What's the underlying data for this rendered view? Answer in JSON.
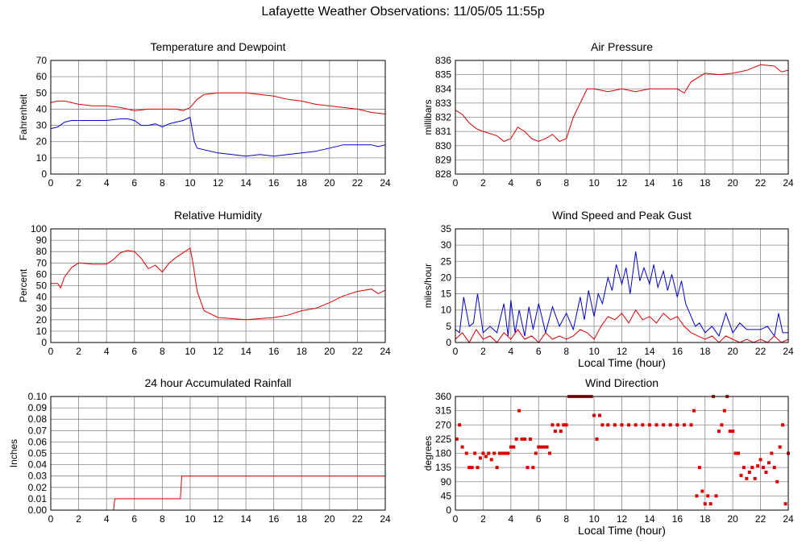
{
  "page": {
    "title": "Lafayette Weather Observations: 11/05/05 11:55p"
  },
  "colors": {
    "grid": "#888888",
    "red": "#dd0000",
    "blue": "#0000cc"
  },
  "chart_data": [
    {
      "id": "temp",
      "type": "line",
      "title": "Temperature and Dewpoint",
      "ylabel": "Fahrenheit",
      "xlabel": "",
      "xlim": [
        0,
        24
      ],
      "ylim": [
        0,
        70
      ],
      "xticks": [
        0,
        2,
        4,
        6,
        8,
        10,
        12,
        14,
        16,
        18,
        20,
        22,
        24
      ],
      "yticks": [
        0,
        10,
        20,
        30,
        40,
        50,
        60,
        70
      ],
      "grid": true,
      "series": [
        {
          "color": "red",
          "x": [
            0,
            0.5,
            1,
            1.5,
            2,
            3,
            4,
            5,
            6,
            7,
            8,
            9,
            9.5,
            10,
            10.5,
            11,
            12,
            13,
            14,
            15,
            16,
            17,
            18,
            19,
            20,
            21,
            22,
            23,
            24
          ],
          "values": [
            44,
            45,
            45,
            44,
            43,
            42,
            42,
            41,
            39,
            40,
            40,
            40,
            39,
            41,
            46,
            49,
            50,
            50,
            50,
            49,
            48,
            46,
            45,
            43,
            42,
            41,
            40,
            38,
            37
          ]
        },
        {
          "color": "blue",
          "x": [
            0,
            0.5,
            1,
            1.5,
            2,
            3,
            4,
            5,
            5.5,
            6,
            6.5,
            7,
            7.5,
            8,
            8.5,
            9,
            9.5,
            10,
            10.1,
            10.3,
            10.5,
            11,
            12,
            13,
            14,
            15,
            16,
            17,
            18,
            19,
            20,
            21,
            22,
            23,
            23.5,
            24
          ],
          "values": [
            28,
            29,
            32,
            33,
            33,
            33,
            33,
            34,
            34,
            33,
            30,
            30,
            31,
            29,
            31,
            32,
            33,
            35,
            30,
            20,
            16,
            15,
            13,
            12,
            11,
            12,
            11,
            12,
            13,
            14,
            16,
            18,
            18,
            18,
            17,
            18
          ]
        }
      ]
    },
    {
      "id": "pressure",
      "type": "line",
      "title": "Air Pressure",
      "ylabel": "millibars",
      "xlabel": "",
      "xlim": [
        0,
        24
      ],
      "ylim": [
        828,
        836
      ],
      "xticks": [
        0,
        2,
        4,
        6,
        8,
        10,
        12,
        14,
        16,
        18,
        20,
        22,
        24
      ],
      "yticks": [
        828,
        829,
        830,
        831,
        832,
        833,
        834,
        835,
        836
      ],
      "grid": true,
      "series": [
        {
          "color": "red",
          "x": [
            0,
            0.5,
            1,
            1.5,
            2,
            3,
            3.5,
            4,
            4.5,
            5,
            5.5,
            6,
            6.5,
            7,
            7.5,
            8,
            8.5,
            9,
            9.5,
            10,
            11,
            12,
            13,
            14,
            15,
            16,
            16.5,
            17,
            18,
            19,
            20,
            21,
            22,
            23,
            23.5,
            24
          ],
          "values": [
            832.5,
            832.2,
            831.6,
            831.2,
            831,
            830.7,
            830.3,
            830.5,
            831.3,
            831,
            830.5,
            830.3,
            830.5,
            830.8,
            830.3,
            830.5,
            832,
            833,
            834,
            834,
            833.8,
            834,
            833.8,
            834,
            834,
            834,
            833.7,
            834.5,
            835.1,
            835,
            835.1,
            835.3,
            835.7,
            835.6,
            835.2,
            835.3
          ]
        }
      ]
    },
    {
      "id": "humidity",
      "type": "line",
      "title": "Relative Humidity",
      "ylabel": "Percent",
      "xlabel": "",
      "xlim": [
        0,
        24
      ],
      "ylim": [
        0,
        100
      ],
      "xticks": [
        0,
        2,
        4,
        6,
        8,
        10,
        12,
        14,
        16,
        18,
        20,
        22,
        24
      ],
      "yticks": [
        0,
        10,
        20,
        30,
        40,
        50,
        60,
        70,
        80,
        90,
        100
      ],
      "grid": true,
      "series": [
        {
          "color": "red",
          "x": [
            0,
            0.5,
            0.7,
            1,
            1.5,
            2,
            3,
            4,
            4.5,
            5,
            5.5,
            6,
            6.5,
            7,
            7.5,
            8,
            8.5,
            9,
            9.5,
            10,
            10.2,
            10.5,
            11,
            12,
            13,
            14,
            15,
            16,
            17,
            18,
            19,
            20,
            21,
            22,
            23,
            23.5,
            24
          ],
          "values": [
            52,
            52,
            48,
            58,
            66,
            70,
            69,
            69,
            73,
            79,
            81,
            80,
            74,
            65,
            68,
            62,
            70,
            75,
            79,
            83,
            70,
            45,
            28,
            22,
            21,
            20,
            21,
            22,
            24,
            28,
            30,
            35,
            41,
            45,
            47,
            43,
            46
          ]
        }
      ]
    },
    {
      "id": "wind",
      "type": "line",
      "title": "Wind Speed and Peak Gust",
      "ylabel": "miles/hour",
      "xlabel": "Local Time (hour)",
      "xlim": [
        0,
        24
      ],
      "ylim": [
        0,
        35
      ],
      "xticks": [
        0,
        2,
        4,
        6,
        8,
        10,
        12,
        14,
        16,
        18,
        20,
        22,
        24
      ],
      "yticks": [
        0,
        5,
        10,
        15,
        20,
        25,
        30,
        35
      ],
      "grid": true,
      "series": [
        {
          "color": "blue",
          "x": [
            0,
            0.3,
            0.6,
            1,
            1.3,
            1.6,
            2,
            2.5,
            3,
            3.5,
            3.8,
            4,
            4.3,
            4.6,
            5,
            5.3,
            5.6,
            6,
            6.5,
            7,
            7.5,
            8,
            8.5,
            9,
            9.3,
            9.6,
            10,
            10.3,
            10.6,
            11,
            11.3,
            11.6,
            12,
            12.3,
            12.6,
            13,
            13.3,
            13.6,
            14,
            14.3,
            14.6,
            15,
            15.3,
            15.6,
            16,
            16.3,
            16.6,
            17,
            17.3,
            17.6,
            18,
            18.5,
            19,
            19.5,
            20,
            20.5,
            21,
            21.5,
            22,
            22.5,
            23,
            23.3,
            23.6,
            24
          ],
          "values": [
            4,
            3,
            14,
            5,
            6,
            15,
            3,
            5,
            3,
            12,
            2,
            13,
            3,
            10,
            2,
            11,
            4,
            12,
            3,
            11,
            5,
            9,
            4,
            14,
            7,
            16,
            8,
            15,
            12,
            20,
            16,
            24,
            18,
            23,
            15,
            28,
            19,
            23,
            18,
            24,
            17,
            22,
            16,
            21,
            14,
            19,
            12,
            8,
            5,
            6,
            3,
            5,
            2,
            9,
            3,
            6,
            4,
            4,
            4,
            5,
            2,
            9,
            3,
            3
          ]
        },
        {
          "color": "red",
          "x": [
            0,
            0.5,
            1,
            1.5,
            2,
            2.5,
            3,
            3.5,
            4,
            4.5,
            5,
            5.5,
            6,
            6.5,
            7,
            7.5,
            8,
            8.5,
            9,
            9.5,
            10,
            10.5,
            11,
            11.5,
            12,
            12.5,
            13,
            13.5,
            14,
            14.5,
            15,
            15.5,
            16,
            16.5,
            17,
            17.5,
            18,
            18.5,
            19,
            19.5,
            20,
            20.5,
            21,
            21.5,
            22,
            22.5,
            23,
            23.5,
            24
          ],
          "values": [
            1,
            3,
            0,
            4,
            1,
            2,
            0,
            3,
            1,
            4,
            1,
            2,
            0,
            3,
            1,
            2,
            1,
            2,
            4,
            3,
            1,
            5,
            8,
            7,
            9,
            6,
            10,
            7,
            8,
            6,
            9,
            7,
            8,
            5,
            3,
            2,
            1,
            2,
            0,
            2,
            1,
            0,
            1,
            0,
            1,
            0,
            2,
            0,
            1
          ]
        }
      ]
    },
    {
      "id": "rain",
      "type": "line",
      "title": "24 hour Accumulated Rainfall",
      "ylabel": "Inches",
      "xlabel": "",
      "xlim": [
        0,
        24
      ],
      "ylim": [
        0,
        0.1
      ],
      "xticks": [
        0,
        2,
        4,
        6,
        8,
        10,
        12,
        14,
        16,
        18,
        20,
        22,
        24
      ],
      "yticks": [
        "0.00",
        "0.01",
        "0.02",
        "0.03",
        "0.04",
        "0.05",
        "0.06",
        "0.07",
        "0.08",
        "0.09",
        "0.10"
      ],
      "grid": true,
      "series": [
        {
          "color": "red",
          "x": [
            0,
            4.5,
            4.6,
            9.3,
            9.4,
            24
          ],
          "values": [
            0,
            0,
            0.01,
            0.01,
            0.03,
            0.03
          ]
        }
      ]
    },
    {
      "id": "direction",
      "type": "scatter",
      "title": "Wind Direction",
      "ylabel": "degrees",
      "xlabel": "Local Time (hour)",
      "xlim": [
        0,
        24
      ],
      "ylim": [
        0,
        360
      ],
      "xticks": [
        0,
        2,
        4,
        6,
        8,
        10,
        12,
        14,
        16,
        18,
        20,
        22,
        24
      ],
      "yticks": [
        0,
        45,
        90,
        135,
        180,
        225,
        270,
        315,
        360
      ],
      "grid": true,
      "series": [
        {
          "color": "red",
          "x": [
            0.1,
            0.3,
            0.5,
            0.8,
            1,
            1.2,
            1.4,
            1.6,
            1.8,
            2,
            2.2,
            2.4,
            2.6,
            2.8,
            3,
            3.2,
            3.4,
            3.6,
            3.8,
            4,
            4.2,
            4.4,
            4.6,
            4.8,
            5,
            5.2,
            5.4,
            5.6,
            5.8,
            6,
            6.2,
            6.4,
            6.6,
            6.8,
            7,
            7.2,
            7.4,
            7.6,
            7.8,
            8,
            8.2,
            8.4,
            8.6,
            8.8,
            9,
            9.2,
            9.4,
            9.6,
            9.8,
            10,
            10.2,
            10.4,
            10.6,
            11,
            11.5,
            12,
            12.5,
            13,
            13.5,
            14,
            14.5,
            15,
            15.5,
            16,
            16.5,
            17,
            17.2,
            17.4,
            17.6,
            17.8,
            18,
            18.2,
            18.4,
            18.6,
            18.8,
            19,
            19.2,
            19.4,
            19.6,
            19.8,
            20,
            20.2,
            20.4,
            20.6,
            20.8,
            21,
            21.2,
            21.4,
            21.6,
            21.8,
            22,
            22.2,
            22.4,
            22.6,
            22.8,
            23,
            23.2,
            23.4,
            23.6,
            23.8,
            24
          ],
          "values": [
            225,
            270,
            200,
            180,
            135,
            135,
            180,
            135,
            165,
            180,
            170,
            180,
            160,
            180,
            135,
            180,
            180,
            180,
            180,
            200,
            200,
            225,
            315,
            225,
            225,
            135,
            225,
            135,
            180,
            200,
            200,
            200,
            200,
            180,
            270,
            250,
            270,
            250,
            270,
            270,
            360,
            360,
            360,
            360,
            360,
            360,
            360,
            360,
            360,
            300,
            225,
            300,
            270,
            270,
            270,
            270,
            270,
            270,
            270,
            270,
            270,
            270,
            270,
            270,
            270,
            270,
            315,
            45,
            135,
            60,
            20,
            45,
            20,
            360,
            45,
            250,
            270,
            315,
            360,
            250,
            250,
            180,
            180,
            110,
            135,
            100,
            120,
            135,
            100,
            140,
            160,
            135,
            120,
            150,
            180,
            135,
            90,
            200,
            270,
            20,
            180
          ]
        }
      ]
    }
  ]
}
